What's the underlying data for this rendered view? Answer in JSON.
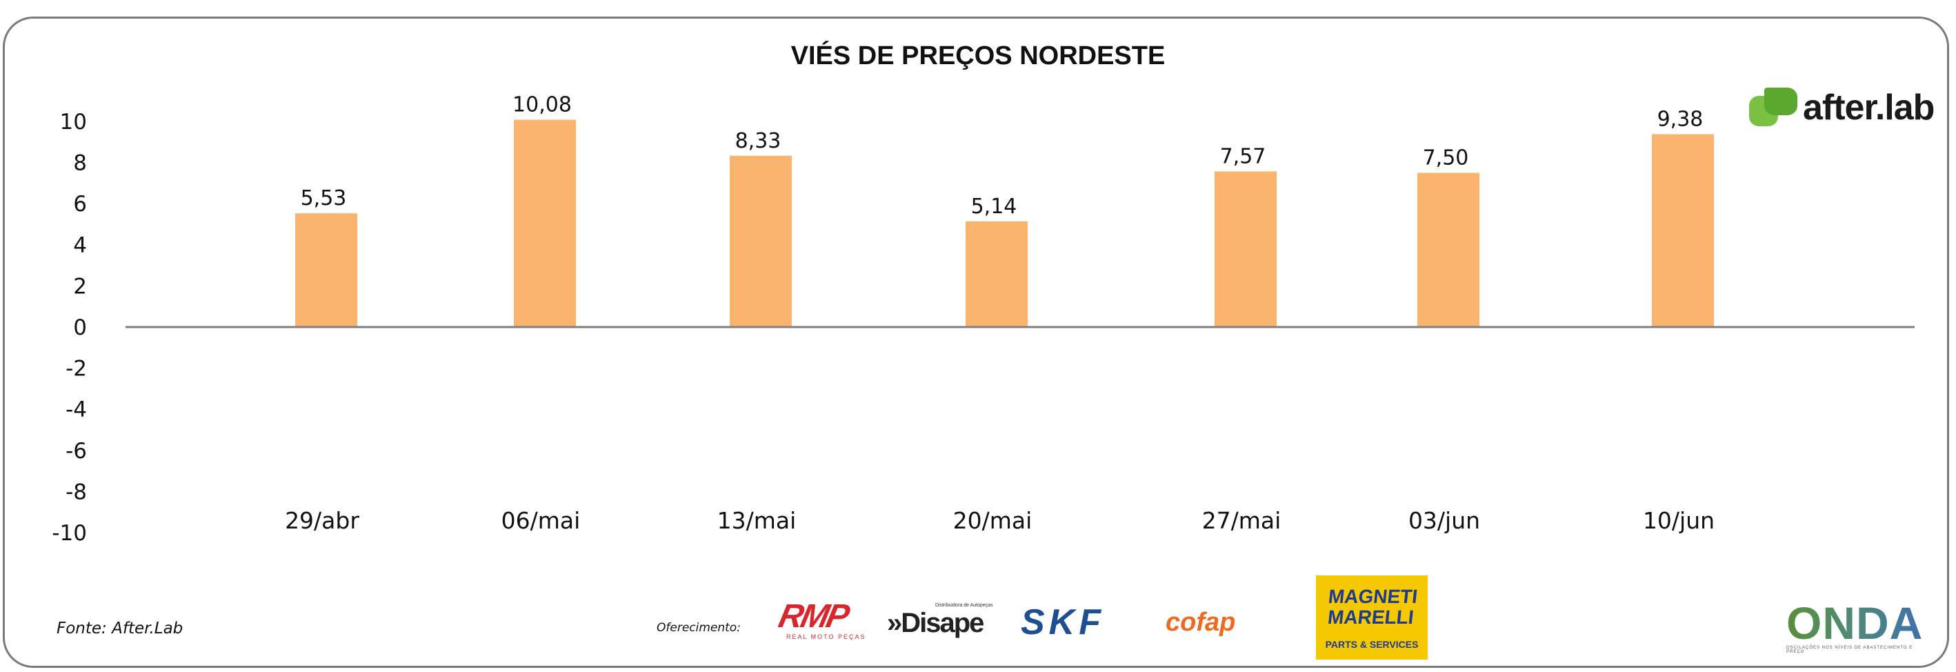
{
  "chart_data": {
    "type": "bar",
    "title": "VIÉS DE PREÇOS NORDESTE",
    "categories": [
      "29/abr",
      "06/mai",
      "13/mai",
      "20/mai",
      "27/mai",
      "03/jun",
      "10/jun"
    ],
    "values": [
      5.53,
      10.08,
      8.33,
      5.14,
      7.57,
      7.5,
      9.38
    ],
    "value_labels": [
      "5,53",
      "10,08",
      "8,33",
      "5,14",
      "7,57",
      "7,50",
      "9,38"
    ],
    "bar_color": "#fbb46e",
    "ylim": [
      -10,
      10
    ],
    "yticks": [
      10,
      8,
      6,
      4,
      2,
      0,
      -2,
      -4,
      -6,
      -8,
      -10
    ],
    "grid": false,
    "legend": "none"
  },
  "footer": {
    "source": "Fonte: After.Lab",
    "sponsor_label": "Oferecimento:"
  },
  "logos": {
    "afterlab": "after.lab",
    "rmp": "RMP",
    "rmp_sub": "REAL MOTO PEÇAS",
    "disape_sub": "Distribuidora de Autopeças",
    "disape": "»Disape",
    "skf": "SKF",
    "cofap": "cofap",
    "magneti_line1": "MAGNETI",
    "magneti_line2": "MARELLI",
    "magneti_sub": "PARTS & SERVICES",
    "onda": "ONDA",
    "onda_sub": "OSCILAÇÕES NOS NÍVEIS DE ABASTECIMENTO E PREÇO"
  }
}
